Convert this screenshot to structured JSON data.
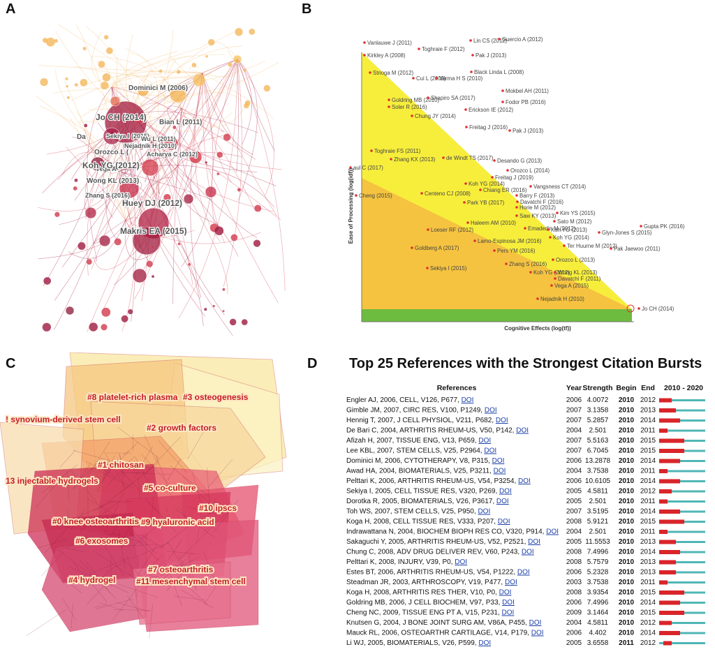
{
  "panels": {
    "a": "A",
    "b": "B",
    "c": "C",
    "d": "D"
  },
  "colors": {
    "network_dark": "#8b1535",
    "network_mid": "#d22c3c",
    "network_light": "#f6b05c",
    "triangle_yellow": "#f7ee3c",
    "triangle_orange": "#f5c340",
    "triangle_green": "#6dbb3f",
    "burst_red": "#d9252a",
    "burst_teal": "#4fb6b5"
  },
  "chart_data": [
    {
      "type": "network",
      "panel": "A",
      "labels": [
        "Dominici M (2006)",
        "Jo CH (2014)",
        "Bian L (2011)",
        "Sekiya I (2015)",
        "Wu L (2011)",
        "Orozco L (",
        "Nejadnik H (2010)",
        "Acharya C (2012)",
        "Vega A (",
        "Koh YG (2012)",
        "Wong KL (2013)",
        "Zhang S (2016)",
        "Huey DJ (2012)",
        "Makris EA (2015)",
        "Da"
      ]
    },
    {
      "type": "scatter",
      "panel": "B",
      "xlabel": "Cognitive Effects (log(tf))",
      "ylabel": "Ease of Processing (log(idf))",
      "points": [
        "Vanlauwe J (2011)",
        "Lin CS (2012)",
        "Guercio A (2012)",
        "Toghraie F (2012)",
        "Pak J (2013)",
        "Kirkley A (2008)",
        "Strioga M (2012)",
        "Black Linda L (2008)",
        "Cui L (2009)",
        "Varma H S (2010)",
        "Mokbel AH (2011)",
        "Goldring MB (2010)",
        "Shapiro SA (2017)",
        "Fodor PB (2016)",
        "Soler R (2016)",
        "Erickson IE (2012)",
        "Chung JY (2014)",
        "Freitag J (2016)",
        "Pak J (2013)",
        "Toghraie FS (2011)",
        "Zhang KX (2013)",
        "de Windt TS (2017)",
        "Desando G (2013)",
        "aul C (2017)",
        "Orozco L (2014)",
        "Freitag J (2019)",
        "Koh YG (2014)",
        "Vangsness CT (2014)",
        "Chiang ER (2016)",
        "Cheng (2015)",
        "Centeno CJ (2008)",
        "Barry F (2013)",
        "Davatchi F (2016)",
        "Park YB (2017)",
        "Horie M (2012)",
        "Kim YS (2015)",
        "Saw KY (2013)",
        "Sato M (2012)",
        "Haleem AM (2010)",
        "Gupta PK (2016)",
        "Emadedin M (2012)",
        "Koh YG (2013)",
        "Glyn-Jones S (2015)",
        "Loeser RF (2012)",
        "Koh YG (2014)",
        "Lamo-Espinosa JM (2016)",
        "Ter Huurne M (2012)",
        "Pak Jaewoo (2011)",
        "Goldberg A (2017)",
        "Pers YM (2016)",
        "Orozco L (2013)",
        "Zhang S (2016)",
        "Sekiya I (2015)",
        "Koh YG (2012)",
        "Wong KL (2013)",
        "Davatchi F (2011)",
        "Vega A (2015)",
        "Nejadnik H (2010)",
        "Jo CH (2014)"
      ]
    },
    {
      "type": "cluster-map",
      "panel": "C",
      "clusters": [
        "#8 platelet-rich plasma",
        "#3 osteogenesis",
        "! synovium-derived stem cell",
        "#2 growth factors",
        "#1 chitosan",
        "13 injectable hydrogels",
        "#5 co-culture",
        "#10 ipscs",
        "#0 knee osteoarthritis",
        "#9 hyaluronic acid",
        "#6 exosomes",
        "#7 osteoarthritis",
        "#4 hydrogel",
        "#11 mesenchymal stem cell"
      ]
    },
    {
      "type": "table",
      "panel": "D",
      "title": "Top 25 References with the Strongest Citation Bursts",
      "columns": [
        "References",
        "Year",
        "Strength",
        "Begin",
        "End",
        "2010 - 2020"
      ],
      "timeline": [
        2010,
        2020
      ],
      "link_text": "DOI",
      "rows": [
        {
          "ref": "Engler AJ, 2006, CELL, V126, P677,",
          "year": 2006,
          "strength": "4.0072",
          "begin": 2010,
          "end": 2012
        },
        {
          "ref": "Gimble JM, 2007, CIRC RES, V100, P1249,",
          "year": 2007,
          "strength": "3.1358",
          "begin": 2010,
          "end": 2013
        },
        {
          "ref": "Hennig T, 2007, J CELL PHYSIOL, V211, P682,",
          "year": 2007,
          "strength": "5.2857",
          "begin": 2010,
          "end": 2014
        },
        {
          "ref": "De Bari C, 2004, ARTHRITIS RHEUM-US, V50, P142,",
          "year": 2004,
          "strength": "2.501",
          "begin": 2010,
          "end": 2011
        },
        {
          "ref": "Afizah H, 2007, TISSUE ENG, V13, P659,",
          "year": 2007,
          "strength": "5.5163",
          "begin": 2010,
          "end": 2015
        },
        {
          "ref": "Lee KBL, 2007, STEM CELLS, V25, P2964,",
          "year": 2007,
          "strength": "6.7045",
          "begin": 2010,
          "end": 2015
        },
        {
          "ref": "Dominici M, 2006, CYTOTHERAPY, V8, P315,",
          "year": 2006,
          "strength": "13.2878",
          "begin": 2010,
          "end": 2014
        },
        {
          "ref": "Awad HA, 2004, BIOMATERIALS, V25, P3211,",
          "year": 2004,
          "strength": "3.7538",
          "begin": 2010,
          "end": 2011
        },
        {
          "ref": "Pelttari K, 2006, ARTHRITIS RHEUM-US, V54, P3254,",
          "year": 2006,
          "strength": "10.6105",
          "begin": 2010,
          "end": 2014
        },
        {
          "ref": "Sekiya I, 2005, CELL TISSUE RES, V320, P269,",
          "year": 2005,
          "strength": "4.5811",
          "begin": 2010,
          "end": 2012
        },
        {
          "ref": "Dorotka R, 2005, BIOMATERIALS, V26, P3617,",
          "year": 2005,
          "strength": "2.501",
          "begin": 2010,
          "end": 2011
        },
        {
          "ref": "Toh WS, 2007, STEM CELLS, V25, P950,",
          "year": 2007,
          "strength": "3.5195",
          "begin": 2010,
          "end": 2014
        },
        {
          "ref": "Koga H, 2008, CELL TISSUE RES, V333, P207,",
          "year": 2008,
          "strength": "5.9121",
          "begin": 2010,
          "end": 2015
        },
        {
          "ref": "Indrawattana N, 2004, BIOCHEM BIOPH RES CO, V320, P914,",
          "year": 2004,
          "strength": "2.501",
          "begin": 2010,
          "end": 2011
        },
        {
          "ref": "Sakaguchi Y, 2005, ARTHRITIS RHEUM-US, V52, P2521,",
          "year": 2005,
          "strength": "11.5553",
          "begin": 2010,
          "end": 2013
        },
        {
          "ref": "Chung C, 2008, ADV DRUG DELIVER REV, V60, P243,",
          "year": 2008,
          "strength": "7.4996",
          "begin": 2010,
          "end": 2014
        },
        {
          "ref": "Pelttari K, 2008, INJURY, V39, P0,",
          "year": 2008,
          "strength": "5.7579",
          "begin": 2010,
          "end": 2013
        },
        {
          "ref": "Estes BT, 2006, ARTHRITIS RHEUM-US, V54, P1222,",
          "year": 2006,
          "strength": "5.2328",
          "begin": 2010,
          "end": 2013
        },
        {
          "ref": "Steadman JR, 2003, ARTHROSCOPY, V19, P477,",
          "year": 2003,
          "strength": "3.7538",
          "begin": 2010,
          "end": 2011
        },
        {
          "ref": "Koga H, 2008, ARTHRITIS RES THER, V10, P0,",
          "year": 2008,
          "strength": "3.9354",
          "begin": 2010,
          "end": 2015
        },
        {
          "ref": "Goldring MB, 2006, J CELL BIOCHEM, V97, P33,",
          "year": 2006,
          "strength": "7.4996",
          "begin": 2010,
          "end": 2014
        },
        {
          "ref": "Cheng NC, 2009, TISSUE ENG PT A, V15, P231,",
          "year": 2009,
          "strength": "3.1464",
          "begin": 2010,
          "end": 2015
        },
        {
          "ref": "Knutsen G, 2004, J BONE JOINT SURG AM, V86A, P455,",
          "year": 2004,
          "strength": "4.5811",
          "begin": 2010,
          "end": 2012
        },
        {
          "ref": "Mauck RL, 2006, OSTEOARTHR CARTILAGE, V14, P179,",
          "year": 2006,
          "strength": "4.402",
          "begin": 2010,
          "end": 2014
        },
        {
          "ref": "Li WJ, 2005, BIOMATERIALS, V26, P599,",
          "year": 2005,
          "strength": "3.6558",
          "begin": 2011,
          "end": 2012
        }
      ]
    }
  ]
}
